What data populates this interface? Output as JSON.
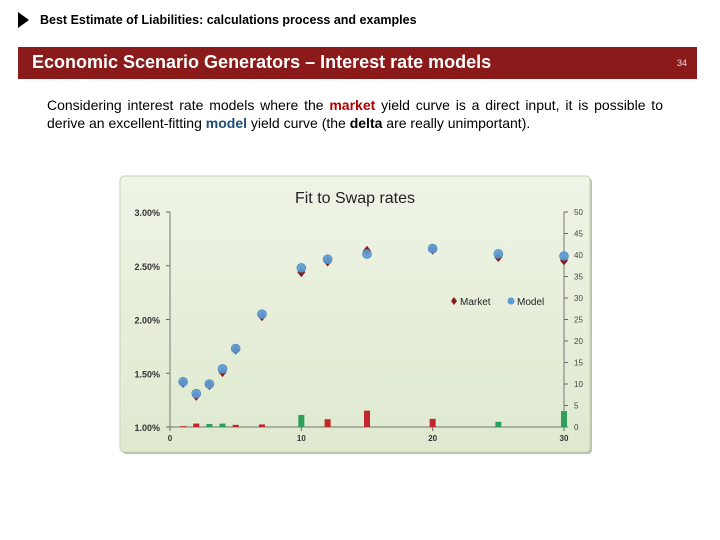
{
  "header": {
    "title": "Best Estimate of Liabilities: calculations process and examples"
  },
  "banner": {
    "title": "Economic Scenario Generators – Interest rate models",
    "page_number": "34"
  },
  "body": {
    "part1": "Considering interest rate models where the ",
    "market": "market",
    "part2": " yield curve is a direct input, it is possible to derive an excellent-fitting ",
    "model": "model",
    "part3": " yield curve (the ",
    "delta": "delta",
    "part4": " are really unimportant)."
  },
  "colors": {
    "banner": "#8b1a1a",
    "market": "#8b1a1a",
    "model": "#5b9bd5",
    "delta_negative": "#c0262c",
    "delta_positive": "#2e9e5b",
    "chart_bg": "#e6efd9"
  },
  "chart_data": {
    "type": "scatter",
    "title": "Fit to Swap rates",
    "x_ticks": [
      "0",
      "10",
      "20",
      "30"
    ],
    "xlim": [
      0,
      30
    ],
    "ylim_left": [
      0.01,
      0.03
    ],
    "y_ticks_left": [
      "3.00%",
      "2.50%",
      "2.00%",
      "1.50%",
      "1.00%"
    ],
    "ylim_right": [
      0,
      50
    ],
    "y_ticks_right": [
      "50",
      "45",
      "40",
      "35",
      "30",
      "25",
      "20",
      "15",
      "10",
      "5",
      "0"
    ],
    "legend": {
      "position": "middle-right"
    },
    "series": [
      {
        "name": "Market",
        "marker": "diamond",
        "x": [
          1,
          2,
          3,
          4,
          5,
          7,
          10,
          12,
          15,
          20,
          25,
          30
        ],
        "y": [
          0.0141,
          0.0129,
          0.0139,
          0.0151,
          0.0172,
          0.0203,
          0.0244,
          0.0254,
          0.0264,
          0.0265,
          0.0258,
          0.0255
        ]
      },
      {
        "name": "Model",
        "marker": "circle",
        "x": [
          1,
          2,
          3,
          4,
          5,
          7,
          10,
          12,
          15,
          20,
          25,
          30
        ],
        "y": [
          0.0142,
          0.0131,
          0.014,
          0.0154,
          0.0173,
          0.0205,
          0.0248,
          0.0256,
          0.0261,
          0.0266,
          0.0261,
          0.0259
        ]
      },
      {
        "name": "",
        "type": "bar",
        "axis": "right",
        "x": [
          1,
          2,
          3,
          4,
          5,
          7,
          10,
          12,
          15,
          20,
          25,
          30
        ],
        "values": [
          0.2,
          0.8,
          0.7,
          0.8,
          0.5,
          0.6,
          2.8,
          1.8,
          3.8,
          1.9,
          1.2,
          3.7
        ],
        "direction": [
          "neg",
          "neg",
          "pos",
          "pos",
          "neg",
          "neg",
          "pos",
          "neg",
          "neg",
          "neg",
          "pos",
          "pos"
        ]
      }
    ]
  }
}
